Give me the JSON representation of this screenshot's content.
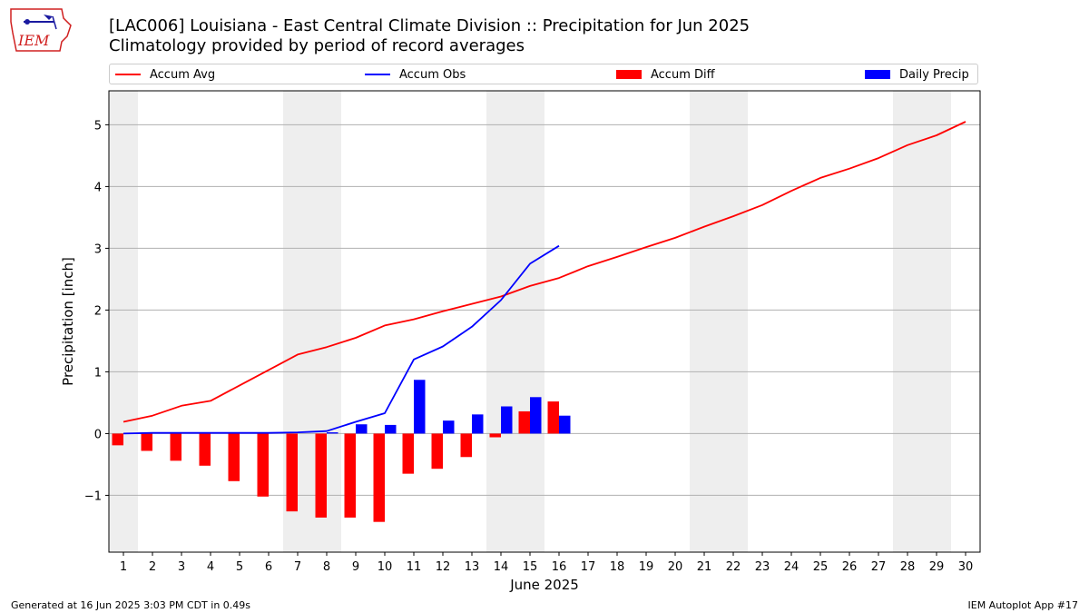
{
  "header": {
    "logo_text": "IEM",
    "title_line1": "[LAC006] Louisiana - East Central Climate Division :: Precipitation for Jun 2025",
    "title_line2": "Climatology provided by period of record averages"
  },
  "legend": {
    "items": [
      {
        "label": "Accum Avg",
        "color": "#ff0000",
        "kind": "line"
      },
      {
        "label": "Accum Obs",
        "color": "#0000ff",
        "kind": "line"
      },
      {
        "label": "Accum Diff",
        "color": "#ff0000",
        "kind": "box"
      },
      {
        "label": "Daily Precip",
        "color": "#0000ff",
        "kind": "box"
      }
    ]
  },
  "footer": {
    "left": "Generated at 16 Jun 2025 3:03 PM CDT in 0.49s",
    "right": "IEM Autoplot App #17"
  },
  "chart_data": {
    "type": "bar",
    "xlabel": "June 2025",
    "ylabel": "Precipitation [inch]",
    "xlim": [
      0.5,
      30.5
    ],
    "ylim": [
      -1.92,
      5.55
    ],
    "x_ticks": [
      1,
      2,
      3,
      4,
      5,
      6,
      7,
      8,
      9,
      10,
      11,
      12,
      13,
      14,
      15,
      16,
      17,
      18,
      19,
      20,
      21,
      22,
      23,
      24,
      25,
      26,
      27,
      28,
      29,
      30
    ],
    "y_ticks": [
      -1,
      0,
      1,
      2,
      3,
      4,
      5
    ],
    "y_tick_labels": [
      "−1",
      "0",
      "1",
      "2",
      "3",
      "4",
      "5"
    ],
    "grid": "horizontal",
    "legend_placement": "top",
    "weekend_shading": [
      [
        0.5,
        1.5
      ],
      [
        6.5,
        8.5
      ],
      [
        13.5,
        15.5
      ],
      [
        20.5,
        22.5
      ],
      [
        27.5,
        29.5
      ]
    ],
    "shading_color": "#eeeeee",
    "series": [
      {
        "name": "Accum Avg",
        "kind": "line",
        "color": "#ff0000",
        "x": [
          1,
          2,
          3,
          4,
          5,
          6,
          7,
          8,
          9,
          10,
          11,
          12,
          13,
          14,
          15,
          16,
          17,
          18,
          19,
          20,
          21,
          22,
          23,
          24,
          25,
          26,
          27,
          28,
          29,
          30
        ],
        "values": [
          0.19,
          0.29,
          0.45,
          0.53,
          0.78,
          1.03,
          1.28,
          1.4,
          1.55,
          1.75,
          1.85,
          1.98,
          2.1,
          2.22,
          2.39,
          2.52,
          2.71,
          2.86,
          3.02,
          3.17,
          3.35,
          3.52,
          3.7,
          3.93,
          4.14,
          4.29,
          4.46,
          4.67,
          4.83,
          5.05
        ]
      },
      {
        "name": "Accum Obs",
        "kind": "line",
        "color": "#0000ff",
        "x": [
          1,
          2,
          3,
          4,
          5,
          6,
          7,
          8,
          9,
          10,
          11,
          12,
          13,
          14,
          15,
          16
        ],
        "values": [
          0.0,
          0.01,
          0.01,
          0.01,
          0.01,
          0.01,
          0.02,
          0.04,
          0.19,
          0.33,
          1.2,
          1.41,
          1.73,
          2.16,
          2.75,
          3.04
        ]
      },
      {
        "name": "Accum Diff",
        "kind": "bar",
        "color": "#ff0000",
        "x": [
          1,
          2,
          3,
          4,
          5,
          6,
          7,
          8,
          9,
          10,
          11,
          12,
          13,
          14,
          15,
          16
        ],
        "values": [
          -0.19,
          -0.28,
          -0.44,
          -0.52,
          -0.77,
          -1.02,
          -1.26,
          -1.36,
          -1.36,
          -1.43,
          -0.65,
          -0.57,
          -0.38,
          -0.06,
          0.36,
          0.52
        ]
      },
      {
        "name": "Daily Precip",
        "kind": "bar",
        "color": "#0000ff",
        "x": [
          1,
          2,
          3,
          4,
          5,
          6,
          7,
          8,
          9,
          10,
          11,
          12,
          13,
          14,
          15,
          16
        ],
        "values": [
          0.0,
          0.0,
          0.0,
          0.0,
          0.0,
          0.0,
          0.0,
          0.02,
          0.15,
          0.14,
          0.87,
          0.21,
          0.31,
          0.44,
          0.59,
          0.29
        ]
      }
    ]
  }
}
